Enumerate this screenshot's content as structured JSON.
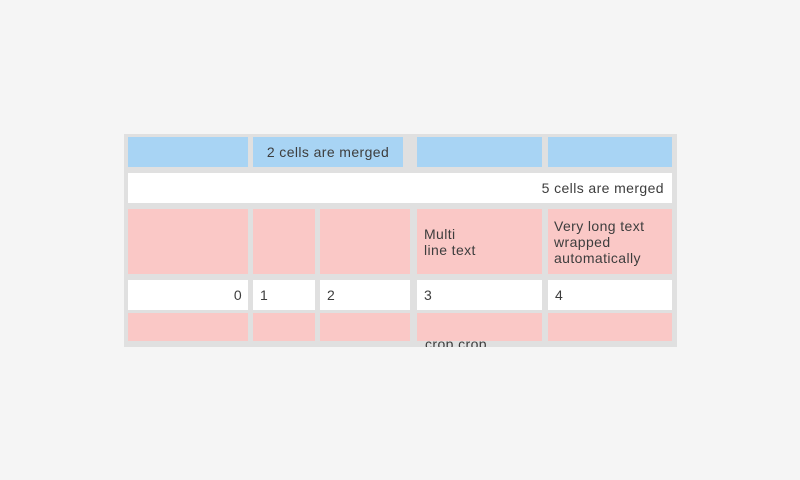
{
  "page": {
    "background_color": "#f5f5f5"
  },
  "table": {
    "colors": {
      "header_blue": "#a8d4f4",
      "row_pink": "#fac8c6",
      "cell_white": "#ffffff",
      "grid_gray": "#e0e0e0",
      "text": "#3d3d3d"
    },
    "row1": {
      "merged_label": "2 cells are merged"
    },
    "row2": {
      "merged_label": "5 cells are merged"
    },
    "row3": {
      "col4": "Multi\nline text",
      "col5": "Very long text wrapped automatically"
    },
    "row4": {
      "col1": "0",
      "col2": "1",
      "col3": "2",
      "col4": "3",
      "col5": "4"
    },
    "row5": {
      "col4": "crop crop crop crop"
    }
  }
}
